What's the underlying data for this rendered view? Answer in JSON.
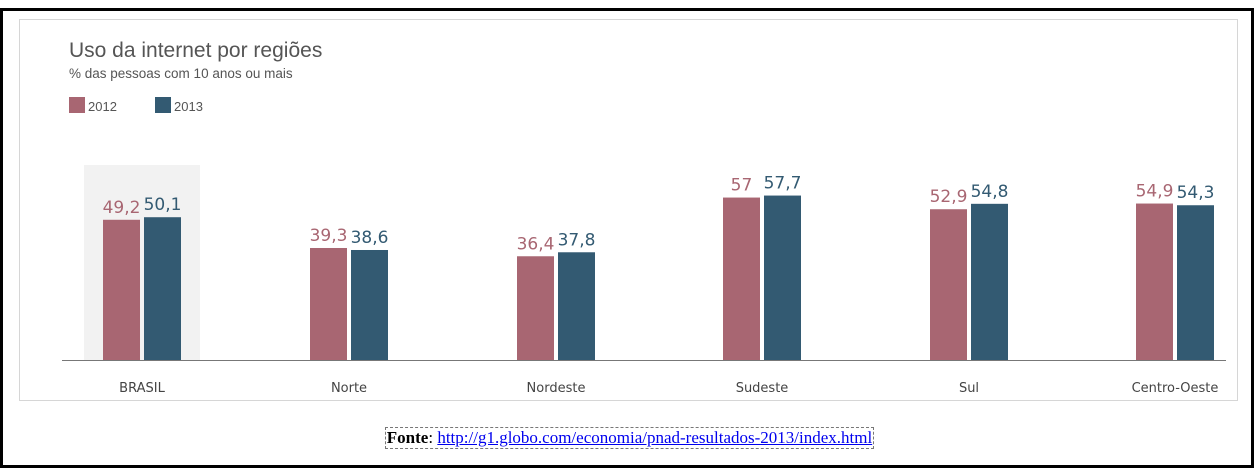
{
  "chart_data": {
    "type": "bar",
    "title": "Uso da internet por regiões",
    "subtitle": "% das pessoas com 10 anos ou mais",
    "categories": [
      "BRASIL",
      "Norte",
      "Nordeste",
      "Sudeste",
      "Sul",
      "Centro-Oeste"
    ],
    "series": [
      {
        "name": "2012",
        "values": [
          49.2,
          39.3,
          36.4,
          57,
          52.9,
          54.9
        ],
        "labels": [
          "49,2",
          "39,3",
          "36,4",
          "57",
          "52,9",
          "54,9"
        ],
        "color": "#a86672"
      },
      {
        "name": "2013",
        "values": [
          50.1,
          38.6,
          37.8,
          57.7,
          54.8,
          54.3
        ],
        "labels": [
          "50,1",
          "38,6",
          "37,8",
          "57,7",
          "54,8",
          "54,3"
        ],
        "color": "#335a72"
      }
    ],
    "highlight_category": "BRASIL",
    "highlight_color": "#f2f2f2",
    "ylim": [
      0,
      60
    ],
    "grid": false,
    "legend_position": "top-left"
  },
  "footer": {
    "label": "Fonte",
    "separator": ": ",
    "link_text": "http://g1.globo.com/economia/pnad-resultados-2013/index.html"
  }
}
